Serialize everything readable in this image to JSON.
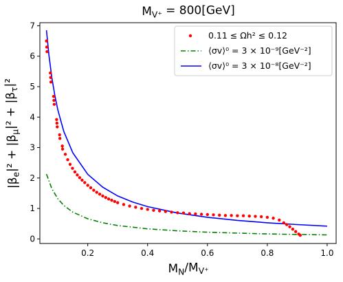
{
  "chart_data": {
    "type": "scatter",
    "title": "M_{V⁺} = 800[GeV]",
    "xlabel": "M_N/M_{V⁺}",
    "ylabel": "|β_e|² + |β_μ|² + |β_τ|²",
    "xlim": [
      0.04,
      1.03
    ],
    "ylim": [
      -0.15,
      7.1
    ],
    "xticks": [
      0.2,
      0.4,
      0.6,
      0.8,
      1.0
    ],
    "xtick_labels": [
      "0.2",
      "0.4",
      "0.6",
      "0.8",
      "1.0"
    ],
    "yticks": [
      0,
      1,
      2,
      3,
      4,
      5,
      6,
      7
    ],
    "ytick_labels": [
      "0",
      "1",
      "2",
      "3",
      "4",
      "5",
      "6",
      "7"
    ],
    "legend_position": "top-right",
    "grid": false,
    "series": [
      {
        "name": "0.11 ≤ Ωh² ≤ 0.12",
        "kind": "scatter",
        "color": "#ff0000",
        "x": [
          0.062,
          0.063,
          0.064,
          0.075,
          0.076,
          0.077,
          0.086,
          0.087,
          0.088,
          0.096,
          0.097,
          0.098,
          0.106,
          0.107,
          0.115,
          0.116,
          0.125,
          0.133,
          0.141,
          0.149,
          0.157,
          0.165,
          0.173,
          0.181,
          0.19,
          0.2,
          0.21,
          0.22,
          0.23,
          0.24,
          0.25,
          0.26,
          0.27,
          0.28,
          0.29,
          0.3,
          0.32,
          0.34,
          0.36,
          0.38,
          0.4,
          0.42,
          0.44,
          0.46,
          0.48,
          0.5,
          0.52,
          0.54,
          0.56,
          0.58,
          0.6,
          0.62,
          0.64,
          0.66,
          0.68,
          0.7,
          0.72,
          0.74,
          0.76,
          0.78,
          0.8,
          0.82,
          0.84,
          0.855,
          0.865,
          0.875,
          0.885,
          0.895,
          0.905,
          0.91
        ],
        "y": [
          6.5,
          6.3,
          6.15,
          5.45,
          5.3,
          5.15,
          4.68,
          4.55,
          4.42,
          3.92,
          3.8,
          3.68,
          3.42,
          3.3,
          3.05,
          2.95,
          2.78,
          2.6,
          2.45,
          2.32,
          2.2,
          2.1,
          2.01,
          1.93,
          1.85,
          1.76,
          1.68,
          1.6,
          1.53,
          1.47,
          1.41,
          1.36,
          1.31,
          1.27,
          1.23,
          1.19,
          1.13,
          1.08,
          1.04,
          1.0,
          0.97,
          0.94,
          0.92,
          0.9,
          0.88,
          0.86,
          0.85,
          0.83,
          0.82,
          0.81,
          0.8,
          0.79,
          0.78,
          0.77,
          0.77,
          0.76,
          0.76,
          0.75,
          0.74,
          0.73,
          0.71,
          0.68,
          0.62,
          0.53,
          0.47,
          0.4,
          0.32,
          0.24,
          0.16,
          0.12
        ]
      },
      {
        "name": "⟨σv⟩⁰ = 3 × 10⁻⁹[GeV⁻²]",
        "kind": "line",
        "style": "dashdot",
        "color": "#008000",
        "x": [
          0.062,
          0.08,
          0.1,
          0.12,
          0.15,
          0.2,
          0.25,
          0.3,
          0.4,
          0.5,
          0.6,
          0.7,
          0.8,
          0.9,
          1.0
        ],
        "y": [
          2.13,
          1.65,
          1.32,
          1.1,
          0.88,
          0.66,
          0.53,
          0.44,
          0.33,
          0.265,
          0.22,
          0.19,
          0.165,
          0.147,
          0.132
        ]
      },
      {
        "name": "⟨σv⟩⁰ = 3 × 10⁻⁸[GeV⁻²]",
        "kind": "line",
        "style": "solid",
        "color": "#0000ff",
        "x": [
          0.062,
          0.07,
          0.08,
          0.09,
          0.1,
          0.12,
          0.15,
          0.2,
          0.25,
          0.3,
          0.35,
          0.4,
          0.5,
          0.6,
          0.7,
          0.8,
          0.9,
          1.0
        ],
        "y": [
          6.85,
          6.05,
          5.3,
          4.71,
          4.24,
          3.53,
          2.83,
          2.12,
          1.7,
          1.41,
          1.21,
          1.06,
          0.85,
          0.71,
          0.61,
          0.53,
          0.47,
          0.42
        ]
      }
    ]
  }
}
